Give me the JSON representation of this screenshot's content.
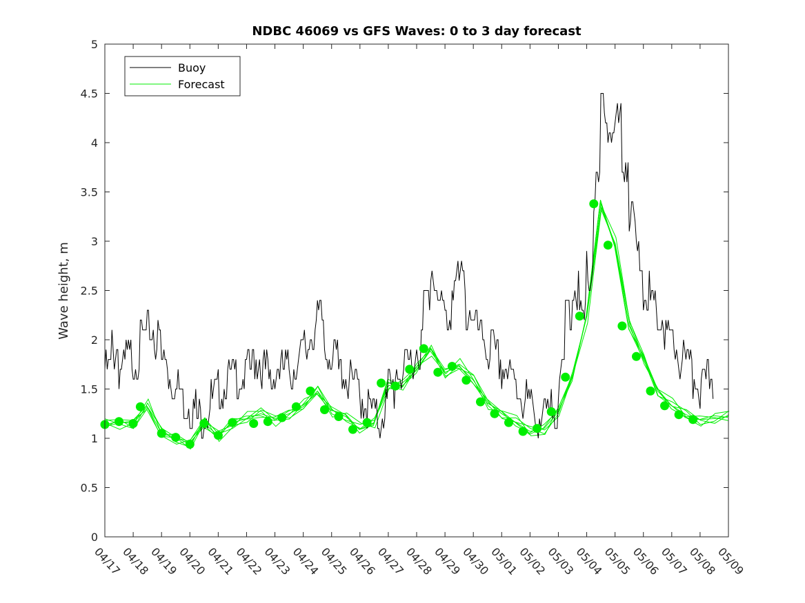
{
  "chart_data": {
    "type": "line",
    "title": "NDBC 46069 vs GFS Waves: 0 to 3 day forecast",
    "ylabel": "Wave height, m",
    "xlabel": "",
    "xlim": [
      "04/17",
      "05/09"
    ],
    "ylim": [
      0,
      5
    ],
    "yticks": [
      "0",
      "0.5",
      "1",
      "1.5",
      "2",
      "2.5",
      "3",
      "3.5",
      "4",
      "4.5",
      "5"
    ],
    "xticks": [
      "04/17",
      "04/18",
      "04/19",
      "04/20",
      "04/21",
      "04/22",
      "04/23",
      "04/24",
      "04/25",
      "04/26",
      "04/27",
      "04/28",
      "04/29",
      "04/30",
      "05/01",
      "05/02",
      "05/03",
      "05/04",
      "05/05",
      "05/06",
      "05/07",
      "05/08",
      "05/09"
    ],
    "grid": false,
    "legend_position": "top-left",
    "legend": [
      "Buoy",
      "Forecast"
    ],
    "colors": {
      "buoy": "#000000",
      "forecast": "#00ee00"
    },
    "series": [
      {
        "name": "Buoy",
        "x": [
          "04/17 00:00",
          "04/17 06:00",
          "04/17 12:00",
          "04/17 18:00",
          "04/18 00:00",
          "04/18 06:00",
          "04/18 12:00",
          "04/18 18:00",
          "04/19 00:00",
          "04/19 06:00",
          "04/19 12:00",
          "04/19 18:00",
          "04/20 00:00",
          "04/20 06:00",
          "04/20 12:00",
          "04/20 18:00",
          "04/21 00:00",
          "04/21 06:00",
          "04/21 12:00",
          "04/21 18:00",
          "04/22 00:00",
          "04/22 06:00",
          "04/22 12:00",
          "04/22 18:00",
          "04/23 00:00",
          "04/23 06:00",
          "04/23 12:00",
          "04/23 18:00",
          "04/24 00:00",
          "04/24 06:00",
          "04/24 12:00",
          "04/24 18:00",
          "04/25 00:00",
          "04/25 06:00",
          "04/25 12:00",
          "04/25 18:00",
          "04/26 00:00",
          "04/26 06:00",
          "04/26 12:00",
          "04/26 18:00",
          "04/27 00:00",
          "04/27 06:00",
          "04/27 12:00",
          "04/27 18:00",
          "04/28 00:00",
          "04/28 06:00",
          "04/28 12:00",
          "04/28 18:00",
          "04/29 00:00",
          "04/29 06:00",
          "04/29 12:00",
          "04/29 18:00",
          "04/30 00:00",
          "04/30 06:00",
          "04/30 12:00",
          "04/30 18:00",
          "05/01 00:00",
          "05/01 06:00",
          "05/01 12:00",
          "05/01 18:00",
          "05/02 00:00",
          "05/02 06:00",
          "05/02 12:00",
          "05/02 18:00",
          "05/03 00:00",
          "05/03 06:00",
          "05/03 12:00",
          "05/03 18:00",
          "05/04 00:00",
          "05/04 06:00",
          "05/04 12:00",
          "05/04 18:00",
          "05/05 00:00",
          "05/05 06:00",
          "05/05 12:00",
          "05/05 18:00",
          "05/06 00:00",
          "05/06 06:00",
          "05/06 12:00",
          "05/06 18:00",
          "05/07 00:00",
          "05/07 06:00",
          "05/07 12:00",
          "05/07 18:00",
          "05/08 00:00",
          "05/08 06:00"
        ],
        "values": [
          1.7,
          1.9,
          1.7,
          1.8,
          1.8,
          2.0,
          2.1,
          2.0,
          1.8,
          1.6,
          1.5,
          1.4,
          1.3,
          1.2,
          1.3,
          1.4,
          1.5,
          1.6,
          1.6,
          1.6,
          1.7,
          1.8,
          1.7,
          1.6,
          1.7,
          1.7,
          1.7,
          1.8,
          1.9,
          2.1,
          2.2,
          1.9,
          1.8,
          1.7,
          1.6,
          1.5,
          1.4,
          1.3,
          1.2,
          1.3,
          1.5,
          1.7,
          1.7,
          1.8,
          1.9,
          2.4,
          2.7,
          2.3,
          2.2,
          2.6,
          2.6,
          2.3,
          2.1,
          2.0,
          1.9,
          1.8,
          1.7,
          1.6,
          1.5,
          1.4,
          1.3,
          1.2,
          1.2,
          1.3,
          1.6,
          2.3,
          2.5,
          2.2,
          2.7,
          3.5,
          4.4,
          4.1,
          4.2,
          3.8,
          3.2,
          2.8,
          2.5,
          2.3,
          2.2,
          2.0,
          1.9,
          1.8,
          1.7,
          1.6,
          1.5,
          1.6
        ]
      },
      {
        "name": "Forecast",
        "x": [
          "04/17 00:00",
          "04/17 12:00",
          "04/18 00:00",
          "04/18 12:00",
          "04/19 00:00",
          "04/19 12:00",
          "04/20 00:00",
          "04/20 12:00",
          "04/21 00:00",
          "04/21 12:00",
          "04/22 00:00",
          "04/22 12:00",
          "04/23 00:00",
          "04/23 12:00",
          "04/24 00:00",
          "04/24 12:00",
          "04/25 00:00",
          "04/25 12:00",
          "04/26 00:00",
          "04/26 12:00",
          "04/27 00:00",
          "04/27 12:00",
          "04/28 00:00",
          "04/28 12:00",
          "04/29 00:00",
          "04/29 12:00",
          "04/30 00:00",
          "04/30 12:00",
          "05/01 00:00",
          "05/01 12:00",
          "05/02 00:00",
          "05/02 12:00",
          "05/03 00:00",
          "05/03 12:00",
          "05/04 00:00",
          "05/04 12:00",
          "05/05 00:00",
          "05/05 12:00",
          "05/06 00:00",
          "05/06 12:00",
          "05/07 00:00",
          "05/07 12:00",
          "05/08 00:00",
          "05/08 12:00",
          "05/09 00:00"
        ],
        "values": [
          1.14,
          1.17,
          1.15,
          1.32,
          1.05,
          1.01,
          0.94,
          1.15,
          1.03,
          1.16,
          1.2,
          1.25,
          1.2,
          1.25,
          1.32,
          1.48,
          1.29,
          1.22,
          1.09,
          1.16,
          1.56,
          1.53,
          1.7,
          1.91,
          1.67,
          1.73,
          1.59,
          1.37,
          1.25,
          1.16,
          1.07,
          1.1,
          1.27,
          1.62,
          2.24,
          3.38,
          2.96,
          2.14,
          1.83,
          1.48,
          1.33,
          1.24,
          1.19,
          1.2,
          1.22
        ]
      }
    ],
    "markers": {
      "x": [
        "04/17 00:00",
        "04/17 12:00",
        "04/18 00:00",
        "04/18 06:00",
        "04/19 00:00",
        "04/19 12:00",
        "04/20 00:00",
        "04/20 12:00",
        "04/21 00:00",
        "04/21 12:00",
        "04/22 06:00",
        "04/22 18:00",
        "04/23 06:00",
        "04/23 18:00",
        "04/24 06:00",
        "04/24 18:00",
        "04/25 06:00",
        "04/25 18:00",
        "04/26 06:00",
        "04/26 18:00",
        "04/27 06:00",
        "04/27 18:00",
        "04/28 06:00",
        "04/28 18:00",
        "04/29 06:00",
        "04/29 18:00",
        "04/30 06:00",
        "04/30 18:00",
        "05/01 06:00",
        "05/01 18:00",
        "05/02 06:00",
        "05/02 18:00",
        "05/03 06:00",
        "05/03 18:00",
        "05/04 06:00",
        "05/04 18:00",
        "05/05 06:00",
        "05/05 18:00",
        "05/06 06:00",
        "05/06 18:00",
        "05/07 06:00",
        "05/07 18:00"
      ],
      "values": [
        1.14,
        1.17,
        1.15,
        1.32,
        1.05,
        1.01,
        0.94,
        1.15,
        1.03,
        1.16,
        1.15,
        1.17,
        1.21,
        1.32,
        1.48,
        1.29,
        1.22,
        1.09,
        1.16,
        1.56,
        1.53,
        1.7,
        1.91,
        1.67,
        1.73,
        1.59,
        1.37,
        1.25,
        1.16,
        1.07,
        1.1,
        1.27,
        1.62,
        2.24,
        3.38,
        2.96,
        2.14,
        1.83,
        1.48,
        1.33,
        1.24,
        1.19
      ]
    }
  }
}
